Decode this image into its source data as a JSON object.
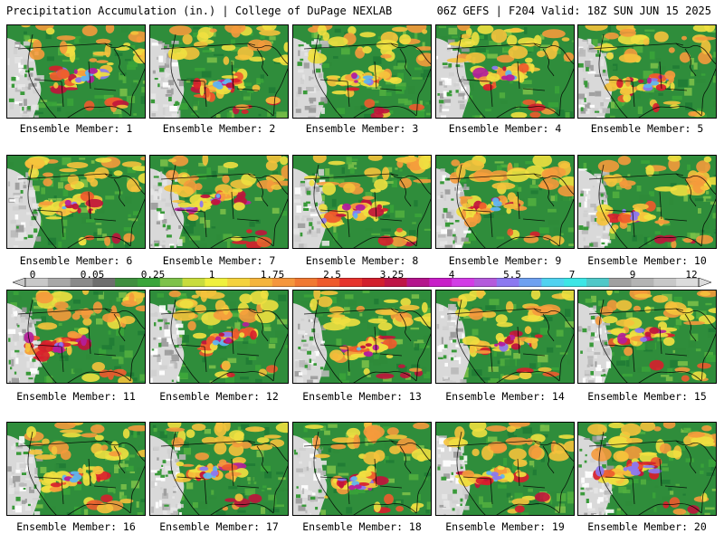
{
  "header": {
    "left": "Precipitation Accumulation (in.) | College of DuPage NEXLAB",
    "right": "06Z GEFS | F204 Valid: 18Z SUN JUN 15 2025"
  },
  "colorbar": {
    "labels": [
      "0",
      "0.05",
      "0.25",
      "1",
      "1.75",
      "2.5",
      "3.25",
      "4",
      "5.5",
      "7",
      "9",
      "12"
    ],
    "colors": [
      "#c8c8c8",
      "#a8a8a8",
      "#8a8a8a",
      "#6e6e6e",
      "#3f8f3f",
      "#3aa53a",
      "#7ec24a",
      "#c8dc3c",
      "#f0f03c",
      "#f5d23c",
      "#f5b43c",
      "#f5963c",
      "#f07832",
      "#ee5a2d",
      "#e6322d",
      "#d21e2d",
      "#be1446",
      "#b4148c",
      "#c81ec8",
      "#d23ce6",
      "#b45adc",
      "#8c78f0",
      "#6ea0f0",
      "#50d2f0",
      "#3ce6e6",
      "#50c8c8",
      "#a0a0a0",
      "#b4b4b4",
      "#c8c8c8",
      "#dcdcdc"
    ]
  },
  "members": [
    {
      "label": "Ensemble Member: 1"
    },
    {
      "label": "Ensemble Member: 2"
    },
    {
      "label": "Ensemble Member: 3"
    },
    {
      "label": "Ensemble Member: 4"
    },
    {
      "label": "Ensemble Member: 5"
    },
    {
      "label": "Ensemble Member: 6"
    },
    {
      "label": "Ensemble Member: 7"
    },
    {
      "label": "Ensemble Member: 8"
    },
    {
      "label": "Ensemble Member: 9"
    },
    {
      "label": "Ensemble Member: 10"
    },
    {
      "label": "Ensemble Member: 11"
    },
    {
      "label": "Ensemble Member: 12"
    },
    {
      "label": "Ensemble Member: 13"
    },
    {
      "label": "Ensemble Member: 14"
    },
    {
      "label": "Ensemble Member: 15"
    },
    {
      "label": "Ensemble Member: 16"
    },
    {
      "label": "Ensemble Member: 17"
    },
    {
      "label": "Ensemble Member: 18"
    },
    {
      "label": "Ensemble Member: 19"
    },
    {
      "label": "Ensemble Member: 20"
    }
  ]
}
